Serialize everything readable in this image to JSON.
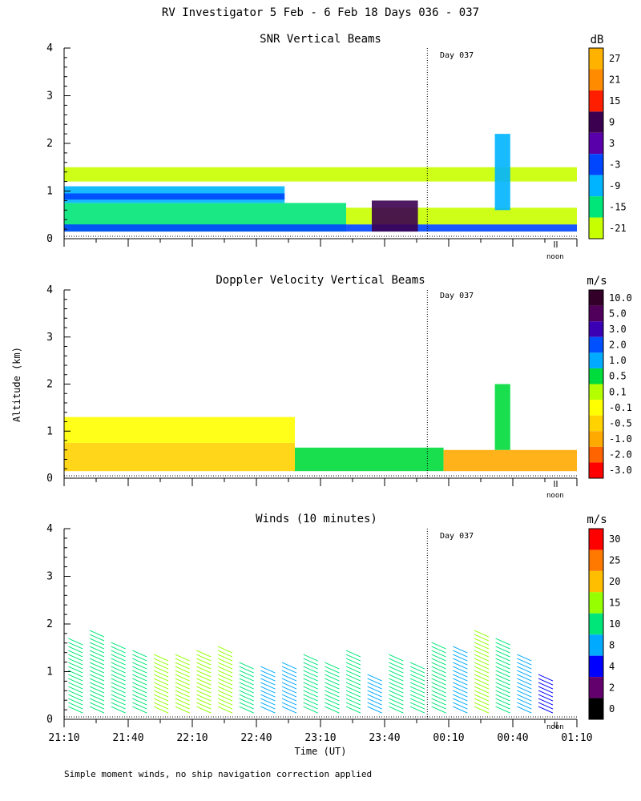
{
  "figure": {
    "title": "RV Investigator    5 Feb -  6 Feb 18 Days 036 - 037",
    "ylabel": "Altitude (km)",
    "xlabel": "Time (UT)",
    "footnote": "Simple moment winds, no ship navigation correction applied"
  },
  "chart_data": [
    {
      "type": "heatmap",
      "title": "SNR Vertical Beams",
      "colorbar_unit": "dB",
      "colorbar_labels": [
        "27",
        "21",
        "15",
        "9",
        "3",
        "-3",
        "-9",
        "-15",
        "-21"
      ],
      "colorbar_colors": [
        "#ffb300",
        "#ff8c00",
        "#ff1e00",
        "#3c0050",
        "#5a00aa",
        "#0046ff",
        "#00b4ff",
        "#00e678",
        "#c8ff00"
      ],
      "yticks": [
        "0",
        "1",
        "2",
        "3",
        "4"
      ],
      "ylim": [
        0,
        4
      ],
      "day_marker": "Day 037",
      "noon_label": "noon",
      "layers": [
        {
          "t0": 0,
          "t1": 0.55,
          "alt0": 0.15,
          "alt1": 0.75,
          "value": -15
        },
        {
          "t0": 0,
          "t1": 0.43,
          "alt0": 0.75,
          "alt1": 1.1,
          "value": -9
        },
        {
          "t0": 0,
          "t1": 0.43,
          "alt0": 0.82,
          "alt1": 0.95,
          "value": -3
        },
        {
          "t0": 0,
          "t1": 1,
          "alt0": 0.15,
          "alt1": 0.3,
          "value": -3
        },
        {
          "t0": 0,
          "t1": 1,
          "alt0": 1.2,
          "alt1": 1.5,
          "value": -21
        },
        {
          "t0": 0.55,
          "t1": 1,
          "alt0": 0.3,
          "alt1": 0.65,
          "value": -21
        },
        {
          "t0": 0.6,
          "t1": 0.69,
          "alt0": 0.15,
          "alt1": 0.8,
          "value": 9
        },
        {
          "t0": 0.84,
          "t1": 0.87,
          "alt0": 0.6,
          "alt1": 2.2,
          "value": -9
        }
      ]
    },
    {
      "type": "heatmap",
      "title": "Doppler Velocity Vertical Beams",
      "colorbar_unit": "m/s",
      "colorbar_labels": [
        "10.0",
        "5.0",
        "3.0",
        "2.0",
        "1.0",
        "0.5",
        "0.1",
        "-0.1",
        "-0.5",
        "-1.0",
        "-2.0",
        "-3.0"
      ],
      "colorbar_colors": [
        "#320028",
        "#50005a",
        "#3c00b4",
        "#0050ff",
        "#00aaff",
        "#00dc3c",
        "#b4ff00",
        "#ffff00",
        "#ffd200",
        "#ffaa00",
        "#ff6400",
        "#ff0000"
      ],
      "yticks": [
        "0",
        "1",
        "2",
        "3",
        "4"
      ],
      "ylim": [
        0,
        4
      ],
      "day_marker": "Day 037",
      "noon_label": "noon",
      "layers": [
        {
          "t0": 0,
          "t1": 0.45,
          "alt0": 0.15,
          "alt1": 0.75,
          "value": -0.5
        },
        {
          "t0": 0,
          "t1": 0.45,
          "alt0": 0.75,
          "alt1": 1.3,
          "value": -0.1
        },
        {
          "t0": 0.45,
          "t1": 0.74,
          "alt0": 0.15,
          "alt1": 0.65,
          "value": 0.5
        },
        {
          "t0": 0.74,
          "t1": 1,
          "alt0": 0.15,
          "alt1": 0.6,
          "value": -1.0
        },
        {
          "t0": 0.84,
          "t1": 0.87,
          "alt0": 0.6,
          "alt1": 2.0,
          "value": 0.5
        }
      ]
    },
    {
      "type": "wind_barbs",
      "title": "Winds (10 minutes)",
      "colorbar_unit": "m/s",
      "colorbar_labels": [
        "30",
        "25",
        "20",
        "15",
        "10",
        "8",
        "4",
        "2",
        "0"
      ],
      "colorbar_colors": [
        "#ff0000",
        "#ff7800",
        "#ffbe00",
        "#96ff00",
        "#00e678",
        "#00aaff",
        "#0000ff",
        "#64006e",
        "#000000"
      ],
      "yticks": [
        "0",
        "1",
        "2",
        "3",
        "4"
      ],
      "ylim": [
        0,
        4
      ],
      "xticks": [
        "21:10",
        "21:40",
        "22:10",
        "22:40",
        "23:10",
        "23:40",
        "00:10",
        "00:40",
        "01:10"
      ],
      "day_marker": "Day 037",
      "noon_label": "noon",
      "profiles": [
        {
          "time": "21:15",
          "top": 1.7,
          "speed": 12
        },
        {
          "time": "21:25",
          "top": 1.8,
          "speed": 10
        },
        {
          "time": "21:35",
          "top": 1.6,
          "speed": 11
        },
        {
          "time": "21:45",
          "top": 1.4,
          "speed": 12
        },
        {
          "time": "21:55",
          "top": 1.3,
          "speed": 13
        },
        {
          "time": "22:05",
          "top": 1.3,
          "speed": 15
        },
        {
          "time": "22:15",
          "top": 1.4,
          "speed": 14
        },
        {
          "time": "22:25",
          "top": 1.5,
          "speed": 13
        },
        {
          "time": "22:35",
          "top": 1.2,
          "speed": 9
        },
        {
          "time": "22:45",
          "top": 1.1,
          "speed": 8
        },
        {
          "time": "22:55",
          "top": 1.2,
          "speed": 6
        },
        {
          "time": "23:05",
          "top": 1.3,
          "speed": 10
        },
        {
          "time": "23:15",
          "top": 1.2,
          "speed": 12
        },
        {
          "time": "23:25",
          "top": 1.4,
          "speed": 10
        },
        {
          "time": "23:35",
          "top": 0.9,
          "speed": 8
        },
        {
          "time": "23:45",
          "top": 1.3,
          "speed": 11
        },
        {
          "time": "23:55",
          "top": 1.2,
          "speed": 9
        },
        {
          "time": "00:05",
          "top": 1.6,
          "speed": 12
        },
        {
          "time": "00:15",
          "top": 1.5,
          "speed": 7
        },
        {
          "time": "00:25",
          "top": 1.8,
          "speed": 14
        },
        {
          "time": "00:35",
          "top": 1.7,
          "speed": 10
        },
        {
          "time": "00:45",
          "top": 1.3,
          "speed": 6
        },
        {
          "time": "00:55",
          "top": 0.9,
          "speed": 3
        }
      ]
    }
  ]
}
